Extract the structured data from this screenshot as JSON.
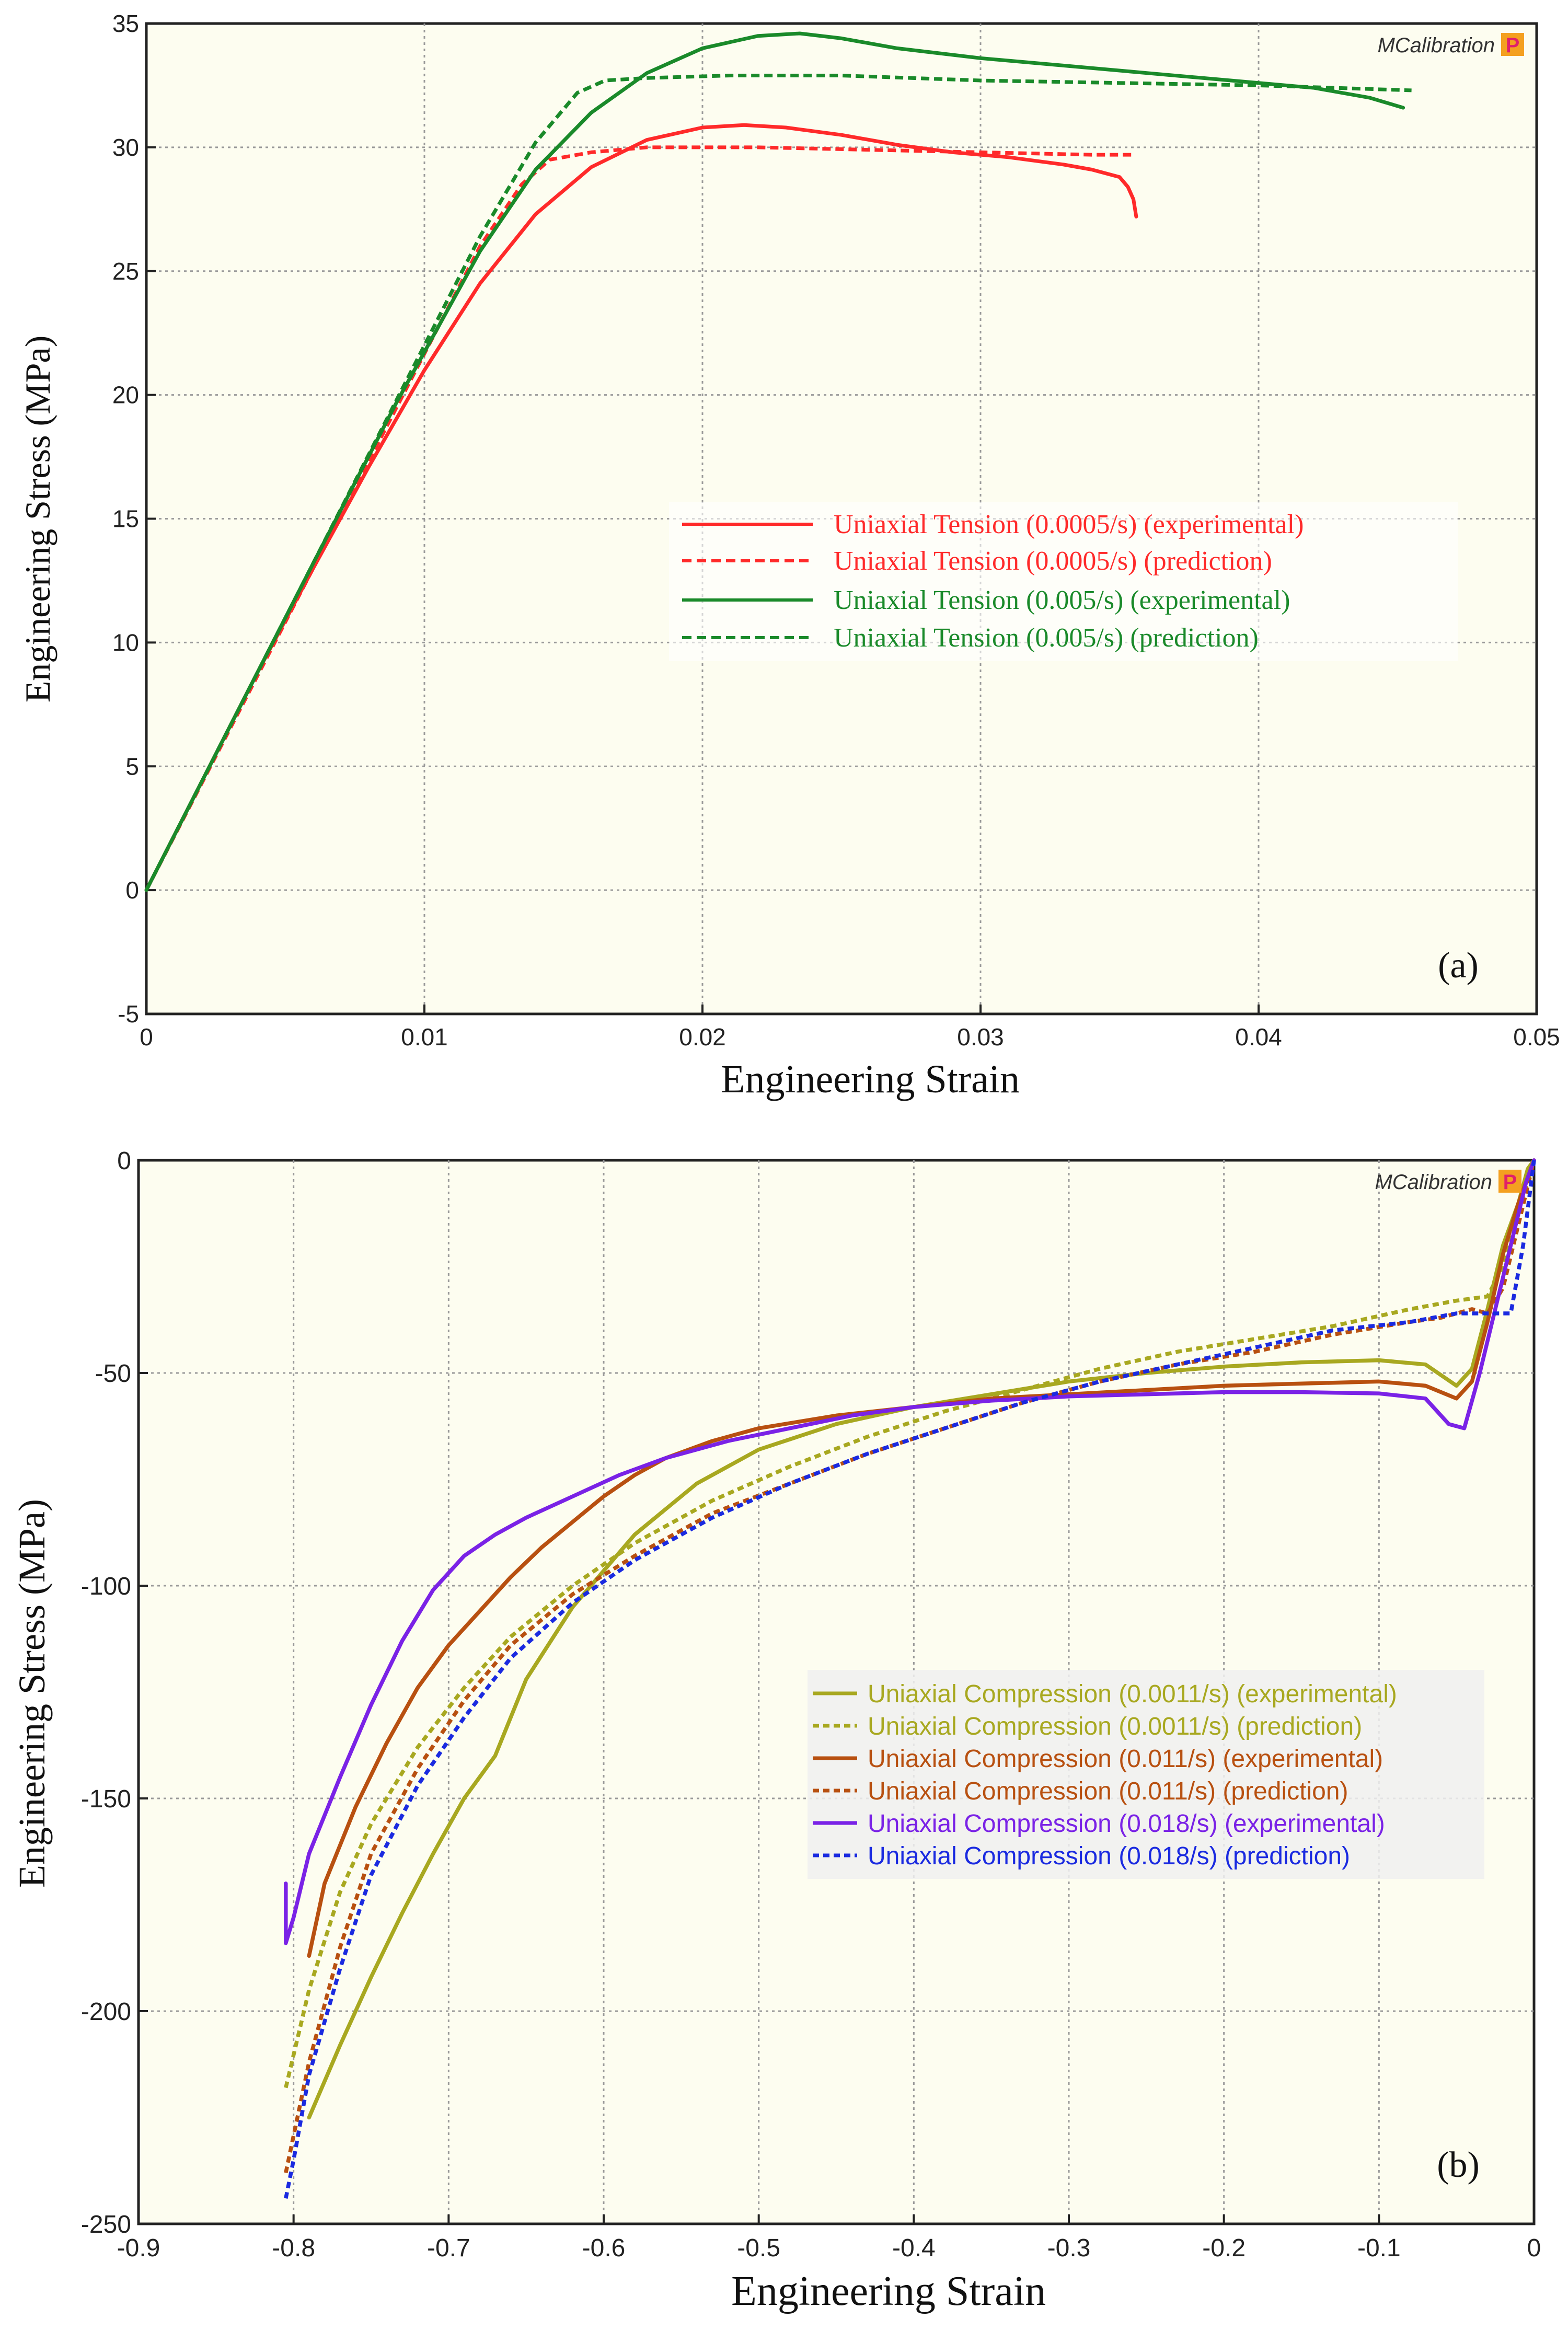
{
  "chart_data": [
    {
      "type": "line",
      "panel_label": "(a)",
      "watermark": "MCalibration",
      "watermark_badge": "P",
      "xlabel": "Engineering Strain",
      "ylabel": "Engineering Stress (MPa)",
      "xlim": [
        0,
        0.05
      ],
      "ylim": [
        -5,
        35
      ],
      "xticks": [
        0,
        0.01,
        0.02,
        0.03,
        0.04,
        0.05
      ],
      "xtick_labels": [
        "0",
        "0.01",
        "0.02",
        "0.03",
        "0.04",
        "0.05"
      ],
      "yticks": [
        -5,
        0,
        5,
        10,
        15,
        20,
        25,
        30,
        35
      ],
      "ytick_labels": [
        "-5",
        "0",
        "5",
        "10",
        "15",
        "20",
        "25",
        "30",
        "35"
      ],
      "grid": true,
      "background": "#fdfdf0",
      "legend_position": "center-right",
      "series": [
        {
          "name": "Uniaxial Tension (0.0005/s) (experimental)",
          "color": "#ff2a2a",
          "style": "solid",
          "x": [
            0,
            0.002,
            0.004,
            0.006,
            0.008,
            0.01,
            0.012,
            0.014,
            0.016,
            0.018,
            0.02,
            0.0215,
            0.023,
            0.025,
            0.027,
            0.029,
            0.031,
            0.033,
            0.034,
            0.035,
            0.0353,
            0.0355,
            0.0356
          ],
          "y": [
            0,
            4.4,
            8.8,
            13.0,
            17.1,
            21.0,
            24.5,
            27.3,
            29.2,
            30.3,
            30.8,
            30.9,
            30.8,
            30.5,
            30.1,
            29.8,
            29.6,
            29.3,
            29.1,
            28.8,
            28.4,
            27.9,
            27.2
          ]
        },
        {
          "name": "Uniaxial Tension (0.0005/s) (prediction)",
          "color": "#ff2a2a",
          "style": "dashed",
          "x": [
            0,
            0.003,
            0.006,
            0.009,
            0.012,
            0.0135,
            0.0145,
            0.016,
            0.018,
            0.022,
            0.026,
            0.03,
            0.034,
            0.0355
          ],
          "y": [
            0,
            6.5,
            13.0,
            19.5,
            26.0,
            28.5,
            29.5,
            29.8,
            30.0,
            30.0,
            29.9,
            29.8,
            29.7,
            29.7
          ]
        },
        {
          "name": "Uniaxial Tension (0.005/s) (experimental)",
          "color": "#1a8a2a",
          "style": "solid",
          "x": [
            0,
            0.003,
            0.006,
            0.009,
            0.012,
            0.014,
            0.016,
            0.018,
            0.02,
            0.022,
            0.0235,
            0.025,
            0.027,
            0.03,
            0.033,
            0.036,
            0.039,
            0.042,
            0.044,
            0.0452
          ],
          "y": [
            0,
            6.6,
            13.2,
            19.7,
            25.8,
            29.1,
            31.4,
            33.0,
            34.0,
            34.5,
            34.6,
            34.4,
            34.0,
            33.6,
            33.3,
            33.0,
            32.7,
            32.4,
            32.0,
            31.6
          ]
        },
        {
          "name": "Uniaxial Tension (0.005/s) (prediction)",
          "color": "#1a8a2a",
          "style": "dashed",
          "x": [
            0,
            0.004,
            0.008,
            0.012,
            0.014,
            0.0155,
            0.0165,
            0.018,
            0.021,
            0.025,
            0.03,
            0.035,
            0.04,
            0.0455
          ],
          "y": [
            0,
            8.8,
            17.6,
            26.4,
            30.2,
            32.2,
            32.7,
            32.8,
            32.9,
            32.9,
            32.7,
            32.6,
            32.5,
            32.3
          ]
        }
      ]
    },
    {
      "type": "line",
      "panel_label": "(b)",
      "watermark": "MCalibration",
      "watermark_badge": "P",
      "xlabel": "Engineering Strain",
      "ylabel": "Engineering Stress (MPa)",
      "xlim": [
        -0.9,
        0
      ],
      "ylim": [
        -250,
        0
      ],
      "xticks": [
        -0.9,
        -0.8,
        -0.7,
        -0.6,
        -0.5,
        -0.4,
        -0.3,
        -0.2,
        -0.1,
        0
      ],
      "xtick_labels": [
        "-0.9",
        "-0.8",
        "-0.7",
        "-0.6",
        "-0.5",
        "-0.4",
        "-0.3",
        "-0.2",
        "-0.1",
        "0"
      ],
      "yticks": [
        -250,
        -200,
        -150,
        -100,
        -50,
        0
      ],
      "ytick_labels": [
        "-250",
        "-200",
        "-150",
        "-100",
        "-50",
        "0"
      ],
      "grid": true,
      "background": "#fdfdf0",
      "legend_position": "bottom-right",
      "series": [
        {
          "name": "Uniaxial Compression (0.0011/s) (experimental)",
          "color": "#a8a820",
          "style": "solid",
          "x": [
            -0.79,
            -0.77,
            -0.75,
            -0.73,
            -0.71,
            -0.69,
            -0.67,
            -0.65,
            -0.62,
            -0.58,
            -0.54,
            -0.5,
            -0.45,
            -0.4,
            -0.35,
            -0.3,
            -0.25,
            -0.2,
            -0.15,
            -0.1,
            -0.07,
            -0.05,
            -0.04,
            -0.03,
            -0.02,
            -0.01,
            -0.004,
            0
          ],
          "y": [
            -225,
            -208,
            -192,
            -177,
            -163,
            -150,
            -140,
            -122,
            -105,
            -88,
            -76,
            -68,
            -62,
            -58,
            -55,
            -52,
            -50,
            -48.5,
            -47.5,
            -47,
            -48,
            -53,
            -49,
            -35,
            -20,
            -10,
            -2,
            0
          ]
        },
        {
          "name": "Uniaxial Compression (0.0011/s) (prediction)",
          "color": "#a8a820",
          "style": "dashed",
          "x": [
            -0.805,
            -0.79,
            -0.77,
            -0.75,
            -0.72,
            -0.69,
            -0.66,
            -0.62,
            -0.58,
            -0.53,
            -0.48,
            -0.43,
            -0.38,
            -0.33,
            -0.28,
            -0.23,
            -0.18,
            -0.13,
            -0.08,
            -0.05,
            -0.03,
            -0.02,
            -0.01,
            0
          ],
          "y": [
            -218,
            -195,
            -172,
            -156,
            -138,
            -124,
            -112,
            -100,
            -90,
            -80,
            -72,
            -65,
            -59,
            -54,
            -49,
            -45,
            -42,
            -39,
            -35,
            -33,
            -32,
            -25,
            -12,
            0
          ]
        },
        {
          "name": "Uniaxial Compression (0.011/s) (experimental)",
          "color": "#b85010",
          "style": "solid",
          "x": [
            -0.79,
            -0.78,
            -0.76,
            -0.74,
            -0.72,
            -0.7,
            -0.68,
            -0.66,
            -0.64,
            -0.62,
            -0.6,
            -0.58,
            -0.56,
            -0.53,
            -0.5,
            -0.45,
            -0.4,
            -0.35,
            -0.3,
            -0.25,
            -0.2,
            -0.15,
            -0.1,
            -0.07,
            -0.05,
            -0.04,
            -0.03,
            -0.02,
            -0.01,
            0
          ],
          "y": [
            -187,
            -170,
            -152,
            -137,
            -124,
            -114,
            -106,
            -98,
            -91,
            -85,
            -79,
            -74,
            -70,
            -66,
            -63,
            -60,
            -58,
            -56,
            -55,
            -54,
            -53,
            -52.5,
            -52,
            -53,
            -56,
            -52,
            -38,
            -22,
            -10,
            0
          ]
        },
        {
          "name": "Uniaxial Compression (0.011/s) (prediction)",
          "color": "#b85010",
          "style": "dashed",
          "x": [
            -0.805,
            -0.79,
            -0.77,
            -0.75,
            -0.72,
            -0.69,
            -0.66,
            -0.62,
            -0.58,
            -0.53,
            -0.48,
            -0.43,
            -0.38,
            -0.33,
            -0.28,
            -0.23,
            -0.18,
            -0.13,
            -0.08,
            -0.06,
            -0.04,
            -0.03,
            -0.02,
            -0.01,
            0
          ],
          "y": [
            -238,
            -212,
            -185,
            -163,
            -143,
            -127,
            -114,
            -102,
            -93,
            -83,
            -76,
            -69,
            -63,
            -57,
            -52,
            -48,
            -45,
            -41,
            -38,
            -37,
            -35,
            -36,
            -30,
            -15,
            0
          ]
        },
        {
          "name": "Uniaxial Compression (0.018/s) (experimental)",
          "color": "#7a22e6",
          "style": "solid",
          "x": [
            -0.805,
            -0.805,
            -0.8,
            -0.79,
            -0.77,
            -0.75,
            -0.73,
            -0.71,
            -0.69,
            -0.67,
            -0.65,
            -0.62,
            -0.59,
            -0.56,
            -0.52,
            -0.48,
            -0.44,
            -0.4,
            -0.35,
            -0.3,
            -0.25,
            -0.2,
            -0.15,
            -0.1,
            -0.07,
            -0.055,
            -0.045,
            -0.035,
            -0.025,
            -0.015,
            -0.005,
            0
          ],
          "y": [
            -170,
            -184,
            -178,
            -163,
            -145,
            -128,
            -113,
            -101,
            -93,
            -88,
            -84,
            -79,
            -74,
            -70,
            -66,
            -63,
            -60,
            -58,
            -56.5,
            -55.5,
            -55,
            -54.5,
            -54.5,
            -54.8,
            -56,
            -62,
            -63,
            -50,
            -35,
            -20,
            -5,
            0
          ]
        },
        {
          "name": "Uniaxial Compression (0.018/s) (prediction)",
          "color": "#1a2ae0",
          "style": "dashed",
          "x": [
            -0.805,
            -0.8,
            -0.79,
            -0.77,
            -0.75,
            -0.72,
            -0.69,
            -0.66,
            -0.62,
            -0.58,
            -0.53,
            -0.48,
            -0.43,
            -0.38,
            -0.33,
            -0.28,
            -0.23,
            -0.18,
            -0.13,
            -0.08,
            -0.05,
            -0.03,
            -0.015,
            -0.007,
            0
          ],
          "y": [
            -244,
            -235,
            -215,
            -190,
            -168,
            -147,
            -131,
            -117,
            -104,
            -94,
            -84,
            -76,
            -69,
            -63,
            -57,
            -52,
            -48,
            -44,
            -40,
            -38,
            -36,
            -36,
            -36,
            -20,
            0
          ]
        }
      ]
    }
  ]
}
